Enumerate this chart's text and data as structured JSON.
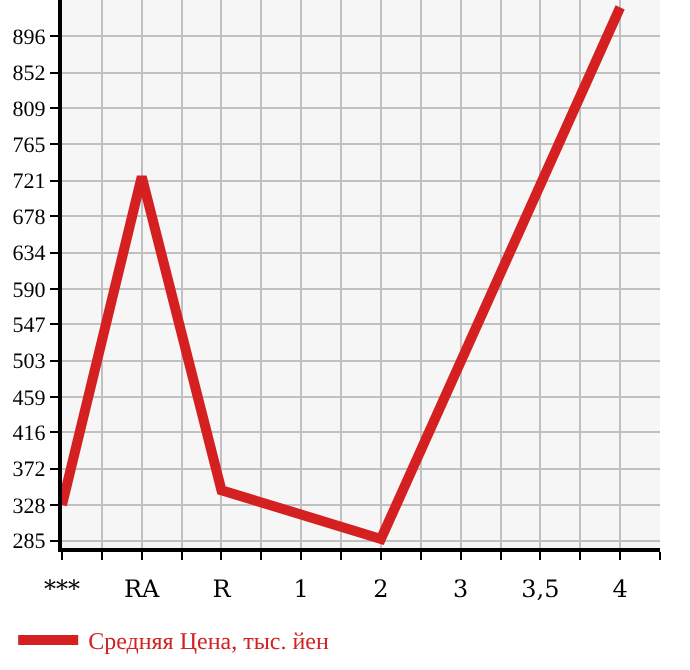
{
  "chart_data": {
    "type": "line",
    "categories": [
      "***",
      "RA",
      "R",
      "1",
      "2",
      "3",
      "3,5",
      "4"
    ],
    "series": [
      {
        "name": "Средняя Цена, тыс. йен",
        "color": "#d42020",
        "values": [
          328,
          726,
          346,
          null,
          287,
          null,
          null,
          931
        ]
      }
    ],
    "ylim": [
      276,
      940
    ],
    "yticks": [
      285,
      328,
      372,
      416,
      459,
      503,
      547,
      590,
      634,
      678,
      721,
      765,
      809,
      852,
      896
    ],
    "grid": true,
    "legend": "bottom",
    "marker": "none",
    "line_style": "solid"
  }
}
